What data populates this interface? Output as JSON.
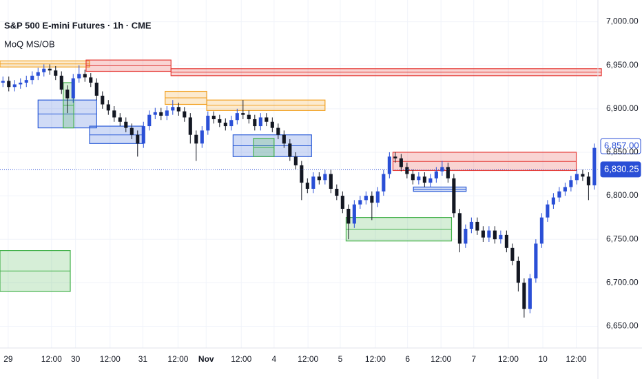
{
  "chart_data": {
    "type": "candlestick",
    "title": "S&P 500 E-mini Futures · 1h · CME",
    "indicator": "MoQ MS/OB",
    "up_color": "#2a4fd6",
    "down_color": "#131722",
    "open": [
      6930,
      6932,
      6925,
      6928,
      6930,
      6933,
      6938,
      6942,
      6946,
      6944,
      6938,
      6922,
      6912,
      6935,
      6940,
      6936,
      6930,
      6915,
      6905,
      6898,
      6890,
      6885,
      6878,
      6870,
      6860,
      6880,
      6893,
      6896,
      6892,
      6898,
      6902,
      6897,
      6890,
      6870,
      6860,
      6875,
      6892,
      6888,
      6884,
      6880,
      6887,
      6895,
      6893,
      6888,
      6880,
      6890,
      6885,
      6878,
      6870,
      6860,
      6845,
      6835,
      6815,
      6808,
      6822,
      6818,
      6825,
      6808,
      6800,
      6785,
      6768,
      6790,
      6795,
      6800,
      6792,
      6805,
      6825,
      6845,
      6843,
      6833,
      6825,
      6818,
      6822,
      6815,
      6820,
      6828,
      6833,
      6820,
      6780,
      6745,
      6762,
      6770,
      6760,
      6752,
      6760,
      6750,
      6755,
      6740,
      6725,
      6700,
      6670,
      6705,
      6745,
      6775,
      6790,
      6798,
      6805,
      6810,
      6818,
      6825,
      6822,
      6812
    ],
    "high": [
      6937,
      6937,
      6933,
      6935,
      6938,
      6943,
      6947,
      6951,
      6951,
      6949,
      6943,
      6927,
      6940,
      6950,
      6945,
      6941,
      6935,
      6920,
      6910,
      6903,
      6895,
      6890,
      6883,
      6875,
      6885,
      6898,
      6901,
      6901,
      6903,
      6910,
      6907,
      6902,
      6895,
      6875,
      6880,
      6897,
      6897,
      6893,
      6889,
      6892,
      6900,
      6910,
      6898,
      6893,
      6895,
      6895,
      6890,
      6883,
      6875,
      6865,
      6850,
      6840,
      6820,
      6827,
      6827,
      6830,
      6830,
      6813,
      6805,
      6790,
      6795,
      6800,
      6805,
      6805,
      6810,
      6830,
      6850,
      6850,
      6848,
      6838,
      6830,
      6827,
      6827,
      6825,
      6833,
      6840,
      6838,
      6825,
      6785,
      6767,
      6775,
      6775,
      6765,
      6765,
      6765,
      6760,
      6760,
      6745,
      6730,
      6705,
      6710,
      6750,
      6780,
      6795,
      6803,
      6810,
      6815,
      6823,
      6830,
      6830,
      6827,
      6860
    ],
    "low": [
      6925,
      6920,
      6920,
      6923,
      6925,
      6928,
      6933,
      6937,
      6939,
      6933,
      6917,
      6895,
      6907,
      6930,
      6931,
      6925,
      6910,
      6900,
      6893,
      6885,
      6880,
      6873,
      6865,
      6845,
      6855,
      6875,
      6888,
      6887,
      6887,
      6893,
      6892,
      6885,
      6860,
      6840,
      6855,
      6870,
      6883,
      6879,
      6875,
      6875,
      6882,
      6888,
      6883,
      6875,
      6875,
      6880,
      6873,
      6865,
      6855,
      6840,
      6830,
      6795,
      6803,
      6803,
      6813,
      6813,
      6803,
      6795,
      6780,
      6750,
      6763,
      6785,
      6790,
      6772,
      6787,
      6800,
      6820,
      6838,
      6828,
      6820,
      6813,
      6813,
      6810,
      6810,
      6815,
      6823,
      6815,
      6775,
      6735,
      6740,
      6757,
      6755,
      6747,
      6747,
      6745,
      6745,
      6735,
      6720,
      6690,
      6660,
      6665,
      6700,
      6740,
      6770,
      6785,
      6793,
      6800,
      6805,
      6813,
      6817,
      6795,
      6807
    ],
    "close": [
      6932,
      6925,
      6928,
      6930,
      6933,
      6938,
      6942,
      6946,
      6944,
      6938,
      6922,
      6912,
      6935,
      6940,
      6936,
      6930,
      6915,
      6905,
      6898,
      6890,
      6885,
      6878,
      6870,
      6860,
      6880,
      6893,
      6896,
      6892,
      6898,
      6902,
      6897,
      6890,
      6870,
      6860,
      6875,
      6892,
      6888,
      6884,
      6880,
      6887,
      6895,
      6893,
      6888,
      6880,
      6890,
      6885,
      6878,
      6870,
      6860,
      6845,
      6835,
      6815,
      6808,
      6822,
      6818,
      6825,
      6808,
      6800,
      6785,
      6768,
      6790,
      6795,
      6800,
      6792,
      6805,
      6825,
      6845,
      6843,
      6833,
      6825,
      6818,
      6822,
      6815,
      6820,
      6828,
      6833,
      6820,
      6780,
      6745,
      6762,
      6770,
      6760,
      6752,
      6760,
      6750,
      6755,
      6740,
      6725,
      6700,
      6670,
      6705,
      6745,
      6775,
      6790,
      6798,
      6805,
      6810,
      6818,
      6825,
      6822,
      6812,
      6855
    ],
    "zones": [
      {
        "top": 6955,
        "bottom": 6948,
        "x0": -0.5,
        "x1": 14.8,
        "color": "#f2a020"
      },
      {
        "top": 6956,
        "bottom": 6943,
        "x0": 14.2,
        "x1": 28.7,
        "color": "#e53935"
      },
      {
        "top": 6946,
        "bottom": 6938,
        "x0": 28.7,
        "x1": 102.2,
        "color": "#e53935"
      },
      {
        "top": 6910,
        "bottom": 6878,
        "x0": 6,
        "x1": 16,
        "color": "#2a5bd7"
      },
      {
        "top": 6880,
        "bottom": 6860,
        "x0": 14.8,
        "x1": 23.9,
        "color": "#2a5bd7"
      },
      {
        "top": 6930,
        "bottom": 6878,
        "x0": 10.3,
        "x1": 12.1,
        "color": "#43b14b"
      },
      {
        "top": 6920,
        "bottom": 6905,
        "x0": 27.7,
        "x1": 34.8,
        "color": "#f2a020"
      },
      {
        "top": 6910,
        "bottom": 6898,
        "x0": 34.8,
        "x1": 55,
        "color": "#f2a020"
      },
      {
        "top": 6870,
        "bottom": 6845,
        "x0": 39.3,
        "x1": 52.7,
        "color": "#2a5bd7"
      },
      {
        "top": 6866,
        "bottom": 6845,
        "x0": 42.8,
        "x1": 46.3,
        "color": "#43b14b"
      },
      {
        "top": 6850,
        "bottom": 6829,
        "x0": 66.6,
        "x1": 97.9,
        "color": "#e53935"
      },
      {
        "top": 6810,
        "bottom": 6805,
        "x0": 70.1,
        "x1": 79.1,
        "color": "#2a5bd7"
      },
      {
        "top": 6775,
        "bottom": 6748,
        "x0": 58.6,
        "x1": 76.6,
        "color": "#43b14b"
      },
      {
        "top": 6737,
        "bottom": 6690,
        "x0": -0.5,
        "x1": 11.5,
        "color": "#43b14b"
      }
    ],
    "price_labels": [
      {
        "value": 6857,
        "label": "6,857.00",
        "style": "outline"
      },
      {
        "value": 6830.25,
        "label": "6,830.25",
        "style": "filled"
      }
    ],
    "xlim": [
      -0.5,
      101.6
    ],
    "ylim": [
      6625,
      7025
    ],
    "yticks": [
      {
        "value": 6650,
        "label": "6,650.00"
      },
      {
        "value": 6700,
        "label": "6,700.00"
      },
      {
        "value": 6750,
        "label": "6,750.00"
      },
      {
        "value": 6800,
        "label": "6,800.00"
      },
      {
        "value": 6850,
        "label": "6,850.00"
      },
      {
        "value": 6900,
        "label": "6,900.00"
      },
      {
        "value": 6950,
        "label": "6,950.00"
      },
      {
        "value": 7000,
        "label": "7,000.00"
      }
    ],
    "xticks": [
      {
        "value": 0.9,
        "label": "29"
      },
      {
        "value": 8.3,
        "label": "12:00"
      },
      {
        "value": 12.4,
        "label": "30"
      },
      {
        "value": 18.3,
        "label": "12:00"
      },
      {
        "value": 23.9,
        "label": "31"
      },
      {
        "value": 29.9,
        "label": "12:00"
      },
      {
        "value": 34.7,
        "label": "Nov"
      },
      {
        "value": 40.7,
        "label": "12:00"
      },
      {
        "value": 46.3,
        "label": "4"
      },
      {
        "value": 52.1,
        "label": "12:00"
      },
      {
        "value": 57.6,
        "label": "5"
      },
      {
        "value": 63.6,
        "label": "12:00"
      },
      {
        "value": 69.1,
        "label": "6"
      },
      {
        "value": 74.8,
        "label": "12:00"
      },
      {
        "value": 80.4,
        "label": "7"
      },
      {
        "value": 86.3,
        "label": "12:00"
      },
      {
        "value": 92.2,
        "label": "10"
      },
      {
        "value": 97.9,
        "label": "12:00"
      }
    ],
    "grid": true
  }
}
